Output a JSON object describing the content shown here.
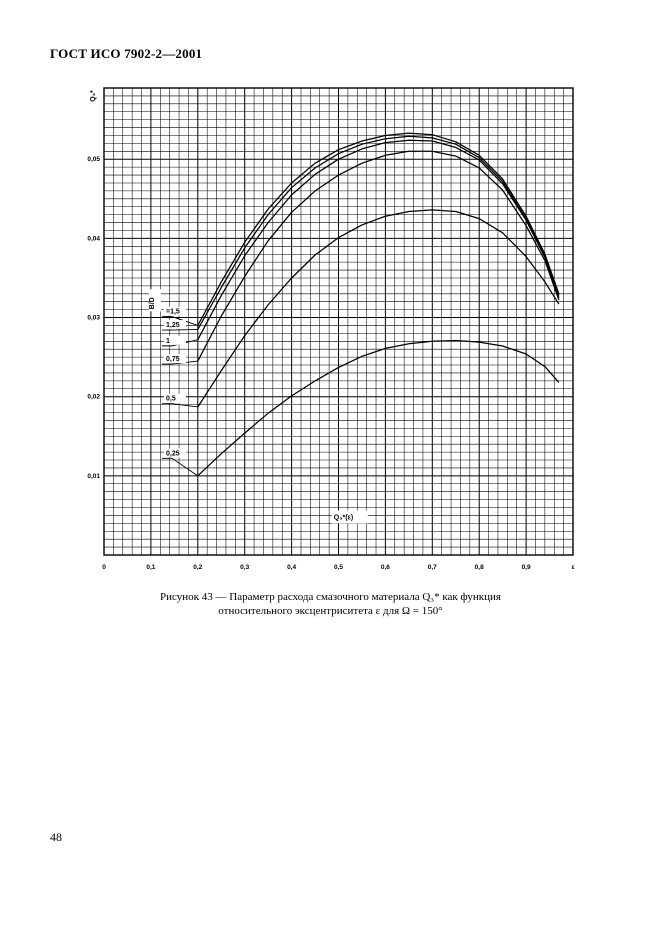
{
  "page": {
    "header": "ГОСТ ИСО 7902-2—2001",
    "caption_line1": "Рисунок 43 — Параметр расхода смазочного материала Q₃* как функция",
    "caption_line2": "относительного эксцентриситета ε для Ω = 150°",
    "page_number": "48"
  },
  "chart_data": {
    "type": "line",
    "ylabel": "Q₃*",
    "xlabel": "ε",
    "inline_label": "Q₃*(ε)",
    "legend_title": "B/D",
    "xlim": [
      0,
      1
    ],
    "ylim": [
      0,
      0.059
    ],
    "grid": true,
    "x_ticks": [
      {
        "value": 0,
        "label": "0"
      },
      {
        "value": 0.1,
        "label": "0,1"
      },
      {
        "value": 0.2,
        "label": "0,2"
      },
      {
        "value": 0.3,
        "label": "0,3"
      },
      {
        "value": 0.4,
        "label": "0,4"
      },
      {
        "value": 0.5,
        "label": "0,5"
      },
      {
        "value": 0.6,
        "label": "0,6"
      },
      {
        "value": 0.7,
        "label": "0,7"
      },
      {
        "value": 0.8,
        "label": "0,8"
      },
      {
        "value": 0.9,
        "label": "0,9"
      },
      {
        "value": 1.0,
        "label": "ε"
      }
    ],
    "y_ticks": [
      {
        "value": 0.01,
        "label": "0,01"
      },
      {
        "value": 0.02,
        "label": "0,02"
      },
      {
        "value": 0.03,
        "label": "0,03"
      },
      {
        "value": 0.04,
        "label": "0,04"
      },
      {
        "value": 0.05,
        "label": "0,05"
      }
    ],
    "series": [
      {
        "name": "=1,5",
        "label_y": 0.0305,
        "points": [
          [
            0.2,
            0.029
          ],
          [
            0.25,
            0.0345
          ],
          [
            0.3,
            0.0395
          ],
          [
            0.35,
            0.0437
          ],
          [
            0.4,
            0.047
          ],
          [
            0.45,
            0.0495
          ],
          [
            0.5,
            0.0512
          ],
          [
            0.55,
            0.0523
          ],
          [
            0.6,
            0.053
          ],
          [
            0.65,
            0.0533
          ],
          [
            0.7,
            0.0531
          ],
          [
            0.75,
            0.0522
          ],
          [
            0.8,
            0.0505
          ],
          [
            0.85,
            0.0475
          ],
          [
            0.9,
            0.0428
          ],
          [
            0.94,
            0.038
          ],
          [
            0.97,
            0.033
          ]
        ]
      },
      {
        "name": "1,25",
        "label_y": 0.0288,
        "points": [
          [
            0.2,
            0.0285
          ],
          [
            0.25,
            0.0338
          ],
          [
            0.3,
            0.0388
          ],
          [
            0.35,
            0.043
          ],
          [
            0.4,
            0.0464
          ],
          [
            0.45,
            0.0489
          ],
          [
            0.5,
            0.0507
          ],
          [
            0.55,
            0.0519
          ],
          [
            0.6,
            0.0526
          ],
          [
            0.65,
            0.0529
          ],
          [
            0.7,
            0.0527
          ],
          [
            0.75,
            0.0519
          ],
          [
            0.8,
            0.0502
          ],
          [
            0.85,
            0.0472
          ],
          [
            0.9,
            0.0425
          ],
          [
            0.94,
            0.0378
          ],
          [
            0.97,
            0.0328
          ]
        ]
      },
      {
        "name": "1",
        "label_y": 0.0268,
        "points": [
          [
            0.2,
            0.0272
          ],
          [
            0.25,
            0.0328
          ],
          [
            0.3,
            0.0378
          ],
          [
            0.35,
            0.042
          ],
          [
            0.4,
            0.0455
          ],
          [
            0.45,
            0.0481
          ],
          [
            0.5,
            0.05
          ],
          [
            0.55,
            0.0513
          ],
          [
            0.6,
            0.0521
          ],
          [
            0.65,
            0.0524
          ],
          [
            0.7,
            0.0523
          ],
          [
            0.75,
            0.0515
          ],
          [
            0.8,
            0.0499
          ],
          [
            0.85,
            0.0469
          ],
          [
            0.9,
            0.0423
          ],
          [
            0.94,
            0.0376
          ],
          [
            0.97,
            0.0325
          ]
        ]
      },
      {
        "name": "0,75",
        "label_y": 0.0245,
        "points": [
          [
            0.2,
            0.0245
          ],
          [
            0.25,
            0.0302
          ],
          [
            0.3,
            0.0352
          ],
          [
            0.35,
            0.0397
          ],
          [
            0.4,
            0.0433
          ],
          [
            0.45,
            0.046
          ],
          [
            0.5,
            0.048
          ],
          [
            0.55,
            0.0495
          ],
          [
            0.6,
            0.0505
          ],
          [
            0.65,
            0.051
          ],
          [
            0.7,
            0.051
          ],
          [
            0.75,
            0.0504
          ],
          [
            0.8,
            0.0489
          ],
          [
            0.85,
            0.0461
          ],
          [
            0.9,
            0.0416
          ],
          [
            0.94,
            0.0372
          ],
          [
            0.97,
            0.0322
          ]
        ]
      },
      {
        "name": "0,5",
        "label_y": 0.0195,
        "points": [
          [
            0.2,
            0.0187
          ],
          [
            0.25,
            0.0233
          ],
          [
            0.3,
            0.0277
          ],
          [
            0.35,
            0.0316
          ],
          [
            0.4,
            0.035
          ],
          [
            0.45,
            0.0379
          ],
          [
            0.5,
            0.0401
          ],
          [
            0.55,
            0.0417
          ],
          [
            0.6,
            0.0428
          ],
          [
            0.65,
            0.0434
          ],
          [
            0.7,
            0.0436
          ],
          [
            0.75,
            0.0434
          ],
          [
            0.8,
            0.0425
          ],
          [
            0.85,
            0.0407
          ],
          [
            0.9,
            0.0377
          ],
          [
            0.94,
            0.0345
          ],
          [
            0.97,
            0.0317
          ]
        ]
      },
      {
        "name": "0,25",
        "label_y": 0.0126,
        "points": [
          [
            0.2,
            0.01
          ],
          [
            0.25,
            0.0128
          ],
          [
            0.3,
            0.0154
          ],
          [
            0.35,
            0.0179
          ],
          [
            0.4,
            0.0201
          ],
          [
            0.45,
            0.022
          ],
          [
            0.5,
            0.0237
          ],
          [
            0.55,
            0.0251
          ],
          [
            0.6,
            0.0261
          ],
          [
            0.65,
            0.0267
          ],
          [
            0.7,
            0.027
          ],
          [
            0.75,
            0.0271
          ],
          [
            0.8,
            0.0269
          ],
          [
            0.85,
            0.0264
          ],
          [
            0.9,
            0.0254
          ],
          [
            0.94,
            0.0238
          ],
          [
            0.97,
            0.0218
          ]
        ]
      }
    ]
  }
}
